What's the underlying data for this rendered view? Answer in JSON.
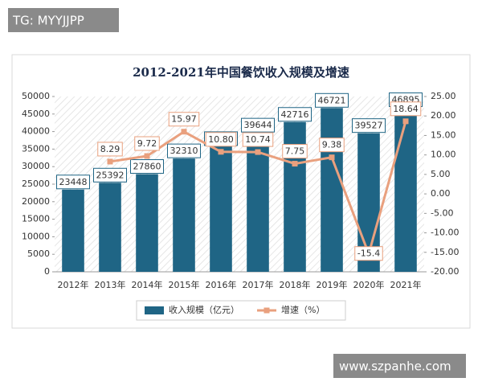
{
  "overlay": {
    "top_left": "TG: MYYJJPP",
    "bottom_right": "www.szpanhe.com"
  },
  "chart_data": {
    "type": "bar-line",
    "title": "2012-2021年中国餐饮收入规模及增速",
    "categories": [
      "2012年",
      "2013年",
      "2014年",
      "2015年",
      "2016年",
      "2017年",
      "2018年",
      "2019年",
      "2020年",
      "2021年"
    ],
    "series": [
      {
        "name": "收入规模（亿元）",
        "type": "bar",
        "color": "#1f6585",
        "values": [
          23448,
          25392,
          27860,
          32310,
          35799,
          39644,
          42716,
          46721,
          39527,
          46895
        ]
      },
      {
        "name": "增速（%）",
        "type": "line",
        "axis": "y2",
        "color": "#e9a07e",
        "values": [
          null,
          8.29,
          9.72,
          15.97,
          10.8,
          10.74,
          7.75,
          9.38,
          -15.4,
          18.64
        ],
        "value_labels": [
          null,
          "8.29",
          "9.72",
          "15.97",
          "10.80",
          "10.74",
          "7.75",
          "9.38",
          "-15.4",
          "18.64"
        ]
      }
    ],
    "ylim": [
      0,
      50000
    ],
    "yticks": [
      0,
      5000,
      10000,
      15000,
      20000,
      25000,
      30000,
      35000,
      40000,
      45000,
      50000
    ],
    "y2lim": [
      -20,
      25
    ],
    "y2ticks": [
      {
        "value": -20,
        "label": "-20.00"
      },
      {
        "value": -15,
        "label": "-15.00"
      },
      {
        "value": -10,
        "label": "-10.00"
      },
      {
        "value": -5,
        "label": "-5.00"
      },
      {
        "value": 0,
        "label": "0.00"
      },
      {
        "value": 5,
        "label": "5.00"
      },
      {
        "value": 10,
        "label": "10.00"
      },
      {
        "value": 15,
        "label": "15.00"
      },
      {
        "value": 20,
        "label": "20.00"
      },
      {
        "value": 25,
        "label": "25.00"
      }
    ],
    "legend": "bottom"
  }
}
